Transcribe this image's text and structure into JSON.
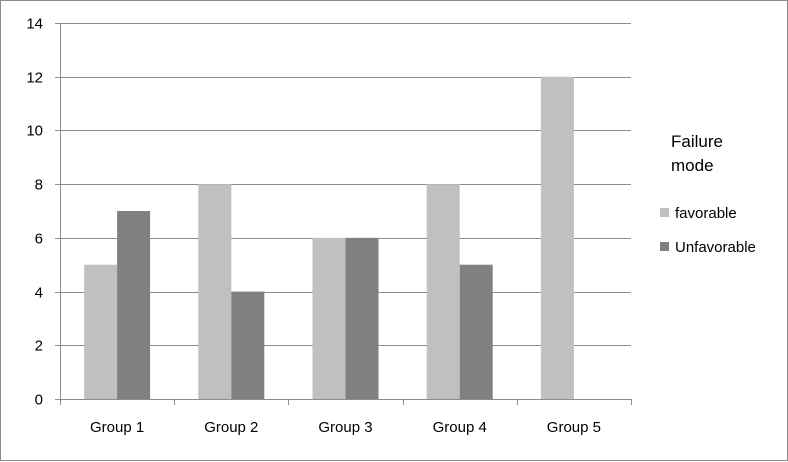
{
  "chart_data": {
    "type": "bar",
    "title": "",
    "xlabel": "",
    "ylabel": "",
    "categories": [
      "Group 1",
      "Group 2",
      "Group 3",
      "Group 4",
      "Group 5"
    ],
    "series": [
      {
        "name": "favorable",
        "values": [
          5,
          8,
          6,
          8,
          12
        ],
        "color": "#c0c0c0"
      },
      {
        "name": "Unfavorable",
        "values": [
          7,
          4,
          6,
          5,
          null
        ],
        "color": "#808080"
      }
    ],
    "ylim": [
      0,
      14
    ],
    "yticks": [
      "0",
      "2",
      "4",
      "6",
      "8",
      "10",
      "12",
      "14"
    ],
    "grid": true,
    "legend": {
      "title_lines": [
        "Failure",
        "mode"
      ],
      "placement": "right"
    }
  }
}
